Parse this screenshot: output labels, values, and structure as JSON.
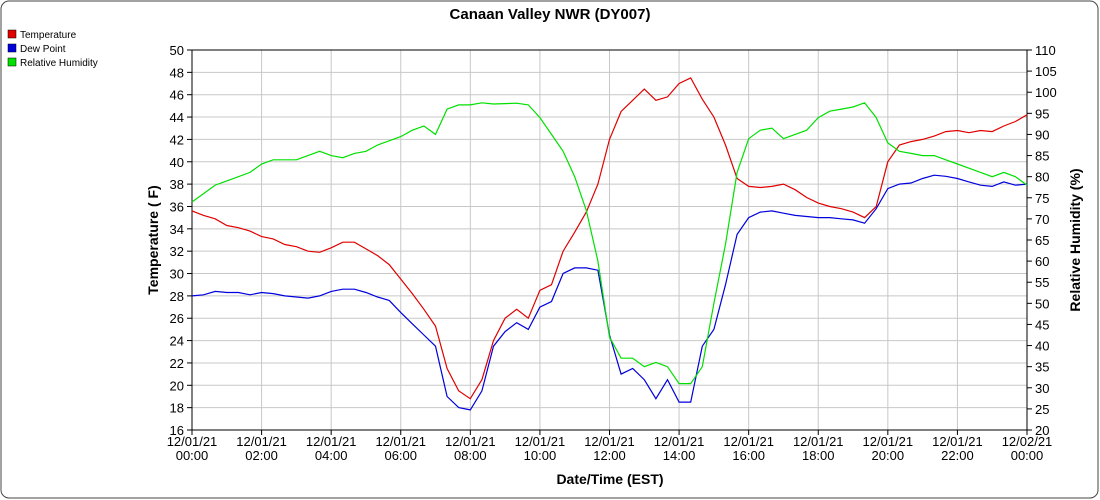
{
  "chart_data": {
    "type": "line",
    "title": "Canaan Valley NWR (DY007)",
    "xlabel": "Date/Time (EST)",
    "ylabel": "Temperature ( F)",
    "y2label": "Relative Humidity (%)",
    "x": [
      "12/01/21 00:00",
      "12/01/21 00:20",
      "12/01/21 00:40",
      "12/01/21 01:00",
      "12/01/21 01:20",
      "12/01/21 01:40",
      "12/01/21 02:00",
      "12/01/21 02:20",
      "12/01/21 02:40",
      "12/01/21 03:00",
      "12/01/21 03:20",
      "12/01/21 03:40",
      "12/01/21 04:00",
      "12/01/21 04:20",
      "12/01/21 04:40",
      "12/01/21 05:00",
      "12/01/21 05:20",
      "12/01/21 05:40",
      "12/01/21 06:00",
      "12/01/21 06:20",
      "12/01/21 06:40",
      "12/01/21 07:00",
      "12/01/21 07:20",
      "12/01/21 07:40",
      "12/01/21 08:00",
      "12/01/21 08:20",
      "12/01/21 08:40",
      "12/01/21 09:00",
      "12/01/21 09:20",
      "12/01/21 09:40",
      "12/01/21 10:00",
      "12/01/21 10:20",
      "12/01/21 10:40",
      "12/01/21 11:00",
      "12/01/21 11:20",
      "12/01/21 11:40",
      "12/01/21 12:00",
      "12/01/21 12:20",
      "12/01/21 12:40",
      "12/01/21 13:00",
      "12/01/21 13:20",
      "12/01/21 13:40",
      "12/01/21 14:00",
      "12/01/21 14:20",
      "12/01/21 14:40",
      "12/01/21 15:00",
      "12/01/21 15:20",
      "12/01/21 15:40",
      "12/01/21 16:00",
      "12/01/21 16:20",
      "12/01/21 16:40",
      "12/01/21 17:00",
      "12/01/21 17:20",
      "12/01/21 17:40",
      "12/01/21 18:00",
      "12/01/21 18:20",
      "12/01/21 18:40",
      "12/01/21 19:00",
      "12/01/21 19:20",
      "12/01/21 19:40",
      "12/01/21 20:00",
      "12/01/21 20:20",
      "12/01/21 20:40",
      "12/01/21 21:00",
      "12/01/21 21:20",
      "12/01/21 21:40",
      "12/01/21 22:00",
      "12/01/21 22:20",
      "12/01/21 22:40",
      "12/01/21 23:00",
      "12/01/21 23:20",
      "12/01/21 23:40",
      "12/02/21 00:00"
    ],
    "series": [
      {
        "name": "Temperature",
        "color": "#e00000",
        "values": [
          35.6,
          35.2,
          34.9,
          34.3,
          34.1,
          33.8,
          33.3,
          33.1,
          32.6,
          32.4,
          32.0,
          31.9,
          32.3,
          32.8,
          32.8,
          32.2,
          31.6,
          30.8,
          29.5,
          28.2,
          26.8,
          25.3,
          21.5,
          19.5,
          18.8,
          20.5,
          24.0,
          26.0,
          26.8,
          26.0,
          28.5,
          29.0,
          32.0,
          33.7,
          35.5,
          38.0,
          42.0,
          44.5,
          45.5,
          46.5,
          45.5,
          45.8,
          47.0,
          47.5,
          45.6,
          44.0,
          41.5,
          38.5,
          37.8,
          37.7,
          37.8,
          38.0,
          37.5,
          36.8,
          36.3,
          36.0,
          35.8,
          35.5,
          35.0,
          36.0,
          40.0,
          41.5,
          41.8,
          42.0,
          42.3,
          42.7,
          42.8,
          42.6,
          42.8,
          42.7,
          43.2,
          43.6,
          44.2
        ]
      },
      {
        "name": "Dew Point",
        "color": "#0000dd",
        "values": [
          28.0,
          28.1,
          28.4,
          28.3,
          28.3,
          28.1,
          28.3,
          28.2,
          28.0,
          27.9,
          27.8,
          28.0,
          28.4,
          28.6,
          28.6,
          28.3,
          27.9,
          27.6,
          26.5,
          25.5,
          24.5,
          23.5,
          19.0,
          18.0,
          17.8,
          19.5,
          23.5,
          24.8,
          25.6,
          25.0,
          27.0,
          27.5,
          30.0,
          30.5,
          30.5,
          30.3,
          24.5,
          21.0,
          21.5,
          20.5,
          18.8,
          20.5,
          18.5,
          18.5,
          23.5,
          25.0,
          29.0,
          33.5,
          35.0,
          35.5,
          35.6,
          35.4,
          35.2,
          35.1,
          35.0,
          35.0,
          34.9,
          34.8,
          34.5,
          35.8,
          37.6,
          38.0,
          38.1,
          38.5,
          38.8,
          38.7,
          38.5,
          38.2,
          37.9,
          37.8,
          38.2,
          37.9,
          38.0
        ]
      },
      {
        "name": "Relative Humidity",
        "color": "#00e000",
        "axis": "y2",
        "values": [
          74,
          76,
          78,
          79,
          80,
          81,
          83,
          84,
          84,
          84,
          85,
          86,
          85,
          84.5,
          85.5,
          86,
          87.5,
          88.5,
          89.5,
          91,
          92,
          90,
          96,
          97,
          97,
          97.5,
          97.2,
          97.3,
          97.4,
          97,
          94,
          90,
          86,
          80,
          72,
          60,
          42,
          37,
          37,
          35,
          36,
          35,
          31,
          31,
          35,
          50,
          64,
          81,
          89,
          91,
          91.5,
          89,
          90,
          91,
          94,
          95.5,
          96,
          96.5,
          97.5,
          94,
          88,
          86,
          85.5,
          85,
          85,
          84,
          83,
          82,
          81,
          80,
          81,
          80,
          78
        ]
      }
    ],
    "xlim": [
      "12/01/21 00:00",
      "12/02/21 00:00"
    ],
    "xticks": [
      {
        "date": "12/01/21",
        "time": "00:00"
      },
      {
        "date": "12/01/21",
        "time": "02:00"
      },
      {
        "date": "12/01/21",
        "time": "04:00"
      },
      {
        "date": "12/01/21",
        "time": "06:00"
      },
      {
        "date": "12/01/21",
        "time": "08:00"
      },
      {
        "date": "12/01/21",
        "time": "10:00"
      },
      {
        "date": "12/01/21",
        "time": "12:00"
      },
      {
        "date": "12/01/21",
        "time": "14:00"
      },
      {
        "date": "12/01/21",
        "time": "16:00"
      },
      {
        "date": "12/01/21",
        "time": "18:00"
      },
      {
        "date": "12/01/21",
        "time": "20:00"
      },
      {
        "date": "12/01/21",
        "time": "22:00"
      },
      {
        "date": "12/02/21",
        "time": "00:00"
      }
    ],
    "ylim": [
      16,
      50
    ],
    "yticks": [
      16,
      18,
      20,
      22,
      24,
      26,
      28,
      30,
      32,
      34,
      36,
      38,
      40,
      42,
      44,
      46,
      48,
      50
    ],
    "y2lim": [
      20,
      110
    ],
    "y2ticks": [
      20,
      25,
      30,
      35,
      40,
      45,
      50,
      55,
      60,
      65,
      70,
      75,
      80,
      85,
      90,
      95,
      100,
      105,
      110
    ],
    "grid": true,
    "legend": "top-left"
  }
}
